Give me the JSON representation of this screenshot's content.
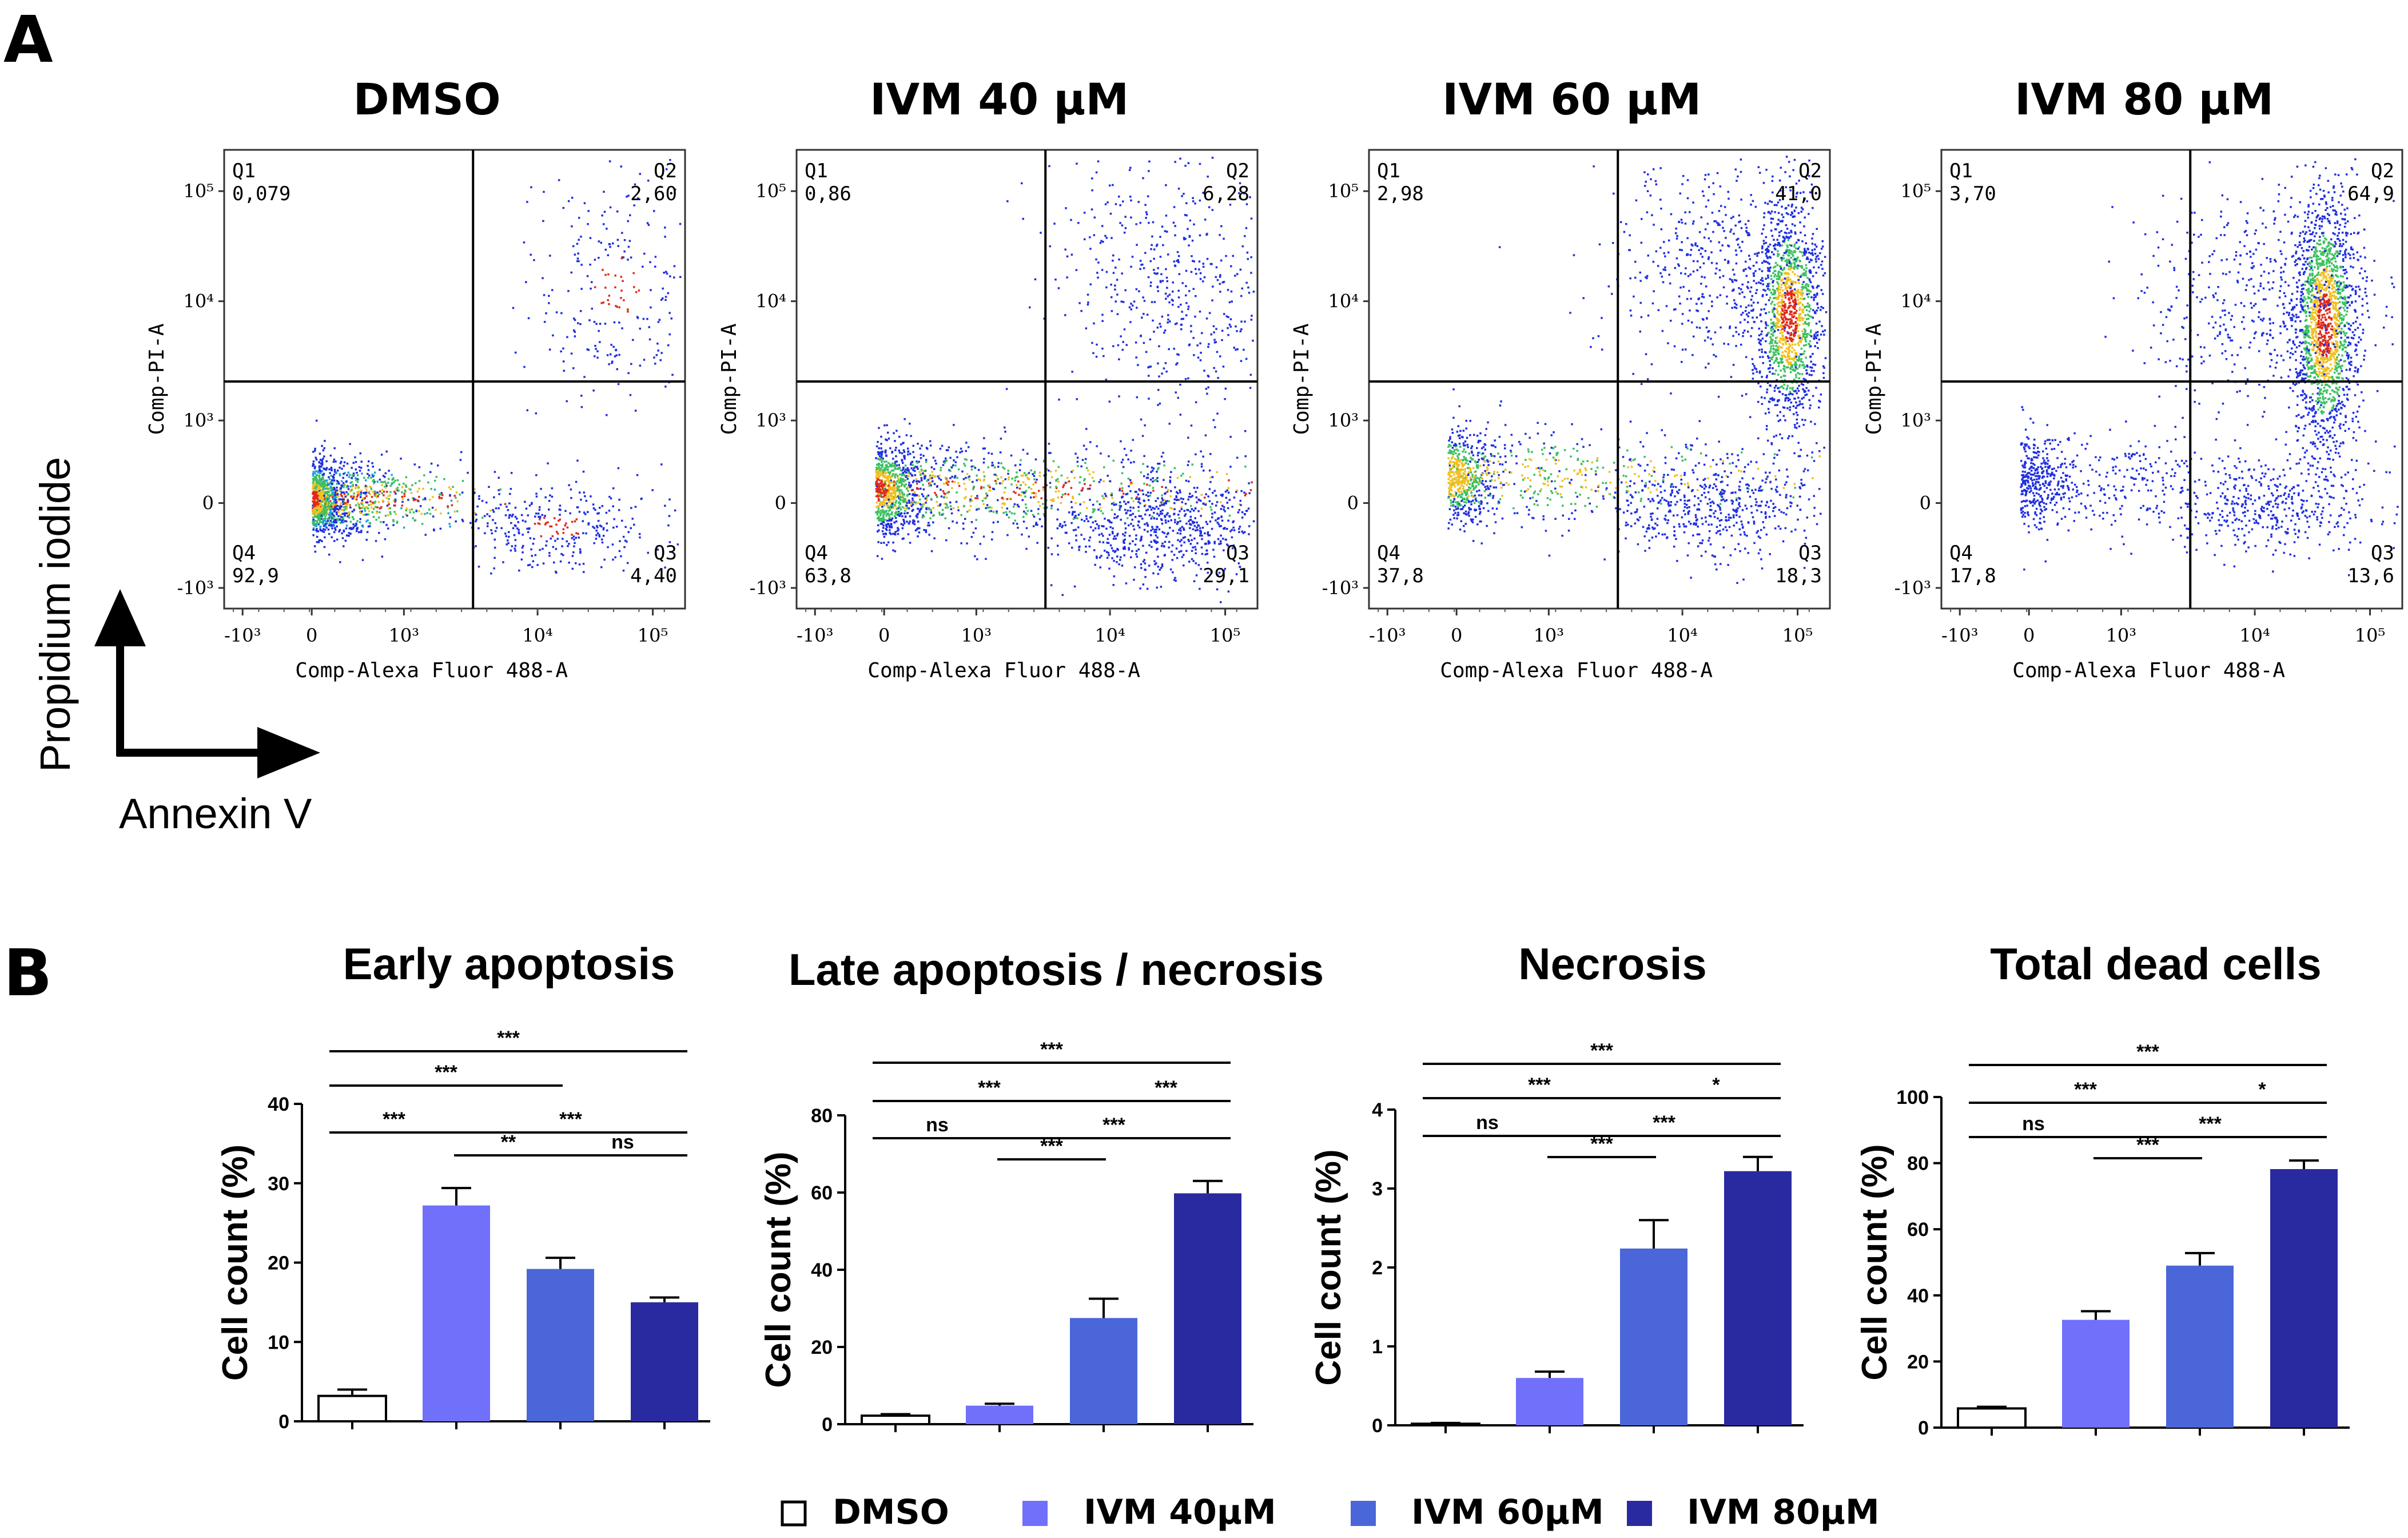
{
  "panel_a_label": "A",
  "panel_b_label": "B",
  "axis_guide": {
    "y_label": "Propidium iodide",
    "x_label": "Annexin V"
  },
  "legend": [
    {
      "label": "DMSO",
      "color": "#ffffff"
    },
    {
      "label": "IVM 40μM",
      "color": "#7070fa"
    },
    {
      "label": "IVM 60μM",
      "color": "#4a66d8"
    },
    {
      "label": "IVM 80μM",
      "color": "#2a2aa0"
    }
  ],
  "flow_common": {
    "x_axis_label": "Comp-Alexa Fluor 488-A",
    "y_axis_label": "Comp-PI-A",
    "x_ticks": [
      "-10³",
      "0",
      "10³",
      "10⁴",
      "10⁵"
    ],
    "y_ticks": [
      "10⁵",
      "10⁴",
      "10³",
      "0",
      "-10³"
    ],
    "quadrant_names": [
      "Q1",
      "Q2",
      "Q3",
      "Q4"
    ]
  },
  "chart_data": [
    {
      "type": "scatter",
      "title": "DMSO",
      "quadrants": {
        "Q1": "0,079",
        "Q2": "2,60",
        "Q3": "4,40",
        "Q4": "92,9"
      }
    },
    {
      "type": "scatter",
      "title": "IVM 40 μM",
      "quadrants": {
        "Q1": "0,86",
        "Q2": "6,28",
        "Q3": "29,1",
        "Q4": "63,8"
      }
    },
    {
      "type": "scatter",
      "title": "IVM 60 μM",
      "quadrants": {
        "Q1": "2,98",
        "Q2": "41,0",
        "Q3": "18,3",
        "Q4": "37,8"
      }
    },
    {
      "type": "scatter",
      "title": "IVM 80 μM",
      "quadrants": {
        "Q1": "3,70",
        "Q2": "64,9",
        "Q3": "13,6",
        "Q4": "17,8"
      }
    },
    {
      "type": "bar",
      "title": "Early apoptosis",
      "ylabel": "Cell count (%)",
      "ylim": [
        0,
        40
      ],
      "yticks": [
        "0",
        "10",
        "20",
        "30",
        "40"
      ],
      "categories": [
        "DMSO",
        "IVM 40μM",
        "IVM 60μM",
        "IVM 80μM"
      ],
      "values": [
        3.2,
        27.2,
        19.2,
        15.0
      ],
      "errors": [
        0.8,
        2.2,
        1.4,
        0.6
      ],
      "significance": [
        {
          "pair": [
            0,
            3
          ],
          "label": "***"
        },
        {
          "pair": [
            0,
            2
          ],
          "label": "***"
        },
        {
          "pair": [
            0,
            1
          ],
          "label": "***"
        },
        {
          "pair": [
            1,
            3
          ],
          "label": "***"
        },
        {
          "pair": [
            1,
            2
          ],
          "label": "**"
        },
        {
          "pair": [
            2,
            3
          ],
          "label": "ns"
        }
      ]
    },
    {
      "type": "bar",
      "title": "Late apoptosis / necrosis",
      "ylabel": "Cell count (%)",
      "ylim": [
        0,
        80
      ],
      "yticks": [
        "0",
        "20",
        "40",
        "60",
        "80"
      ],
      "categories": [
        "DMSO",
        "IVM 40μM",
        "IVM 60μM",
        "IVM 80μM"
      ],
      "values": [
        2.2,
        4.8,
        27.5,
        59.8
      ],
      "errors": [
        0.4,
        0.5,
        5.0,
        3.2
      ],
      "significance": [
        {
          "pair": [
            0,
            3
          ],
          "label": "***"
        },
        {
          "pair": [
            0,
            2
          ],
          "label": "***"
        },
        {
          "pair": [
            2,
            3
          ],
          "label": "***"
        },
        {
          "pair": [
            0,
            1
          ],
          "label": "ns"
        },
        {
          "pair": [
            1,
            3
          ],
          "label": "***"
        },
        {
          "pair": [
            1,
            2
          ],
          "label": "***"
        }
      ]
    },
    {
      "type": "bar",
      "title": "Necrosis",
      "ylabel": "Cell count (%)",
      "ylim": [
        0,
        4
      ],
      "yticks": [
        "0",
        "1",
        "2",
        "3",
        "4"
      ],
      "categories": [
        "DMSO",
        "IVM 40μM",
        "IVM 60μM",
        "IVM 80μM"
      ],
      "values": [
        0.02,
        0.6,
        2.24,
        3.22
      ],
      "errors": [
        0.01,
        0.08,
        0.36,
        0.18
      ],
      "significance": [
        {
          "pair": [
            0,
            3
          ],
          "label": "***"
        },
        {
          "pair": [
            0,
            2
          ],
          "label": "***"
        },
        {
          "pair": [
            2,
            3
          ],
          "label": "*"
        },
        {
          "pair": [
            0,
            1
          ],
          "label": "ns"
        },
        {
          "pair": [
            1,
            3
          ],
          "label": "***"
        },
        {
          "pair": [
            1,
            2
          ],
          "label": "***"
        }
      ]
    },
    {
      "type": "bar",
      "title": "Total dead cells",
      "ylabel": "Cell count (%)",
      "ylim": [
        0,
        100
      ],
      "yticks": [
        "0",
        "20",
        "40",
        "60",
        "80",
        "100"
      ],
      "categories": [
        "DMSO",
        "IVM 40μM",
        "IVM 60μM",
        "IVM 80μM"
      ],
      "values": [
        5.8,
        32.6,
        49.0,
        78.2
      ],
      "errors": [
        0.5,
        2.6,
        3.8,
        2.6
      ],
      "significance": [
        {
          "pair": [
            0,
            3
          ],
          "label": "***"
        },
        {
          "pair": [
            0,
            2
          ],
          "label": "***"
        },
        {
          "pair": [
            2,
            3
          ],
          "label": "*"
        },
        {
          "pair": [
            0,
            1
          ],
          "label": "ns"
        },
        {
          "pair": [
            1,
            3
          ],
          "label": "***"
        },
        {
          "pair": [
            1,
            2
          ],
          "label": "***"
        }
      ]
    }
  ]
}
